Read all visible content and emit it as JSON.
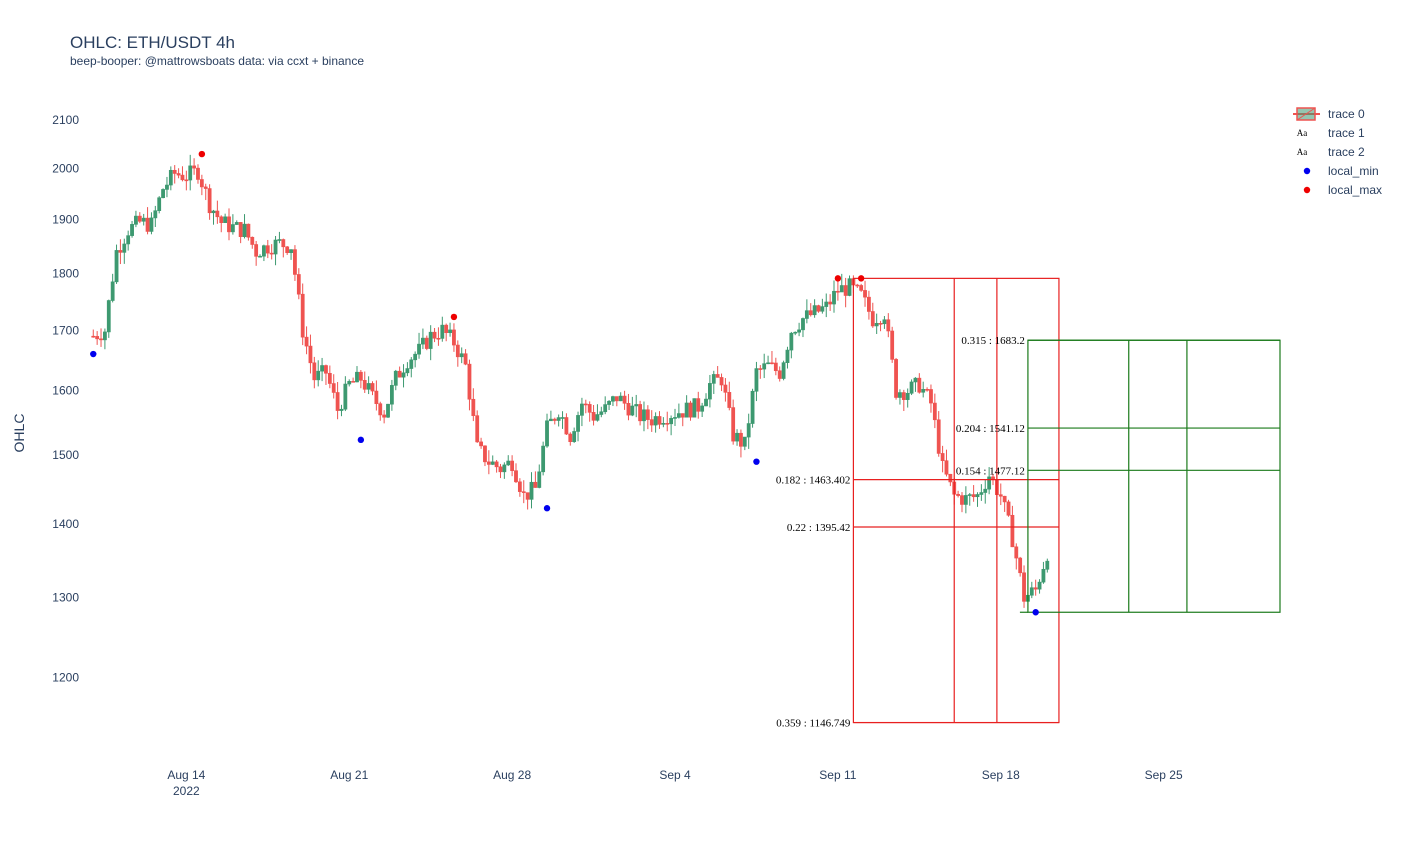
{
  "title": "OHLC: ETH/USDT 4h",
  "subtitle": "beep-booper: @mattrowsboats data: via ccxt + binance",
  "chart_data": {
    "type": "candlestick",
    "ylabel": "OHLC",
    "y_scale": "log",
    "ylim": [
      1110,
      2140
    ],
    "xlim": [
      "2022-08-09",
      "2022-09-30"
    ],
    "y_ticks": [
      1200,
      1300,
      1400,
      1500,
      1600,
      1700,
      1800,
      1900,
      2000,
      2100
    ],
    "x_ticks": [
      {
        "date": "2022-08-14",
        "label": "Aug 14",
        "sublabel": "2022"
      },
      {
        "date": "2022-08-21",
        "label": "Aug 21"
      },
      {
        "date": "2022-08-28",
        "label": "Aug 28"
      },
      {
        "date": "2022-09-04",
        "label": "Sep 4"
      },
      {
        "date": "2022-09-11",
        "label": "Sep 11"
      },
      {
        "date": "2022-09-18",
        "label": "Sep 18"
      },
      {
        "date": "2022-09-25",
        "label": "Sep 25"
      }
    ],
    "colors": {
      "increasing": "#3d9970",
      "decreasing": "#ef5350",
      "local_min": "#0000ee",
      "local_max": "#ee0000",
      "fib_red": "#e82020",
      "fib_green": "#1a7a1a"
    },
    "candles_close": [
      {
        "date": "2022-08-10 00:00",
        "close": 1690
      },
      {
        "date": "2022-08-10 12:00",
        "close": 1700
      },
      {
        "date": "2022-08-11 00:00",
        "close": 1840
      },
      {
        "date": "2022-08-11 12:00",
        "close": 1880
      },
      {
        "date": "2022-08-12 00:00",
        "close": 1895
      },
      {
        "date": "2022-08-12 12:00",
        "close": 1890
      },
      {
        "date": "2022-08-13 00:00",
        "close": 1960
      },
      {
        "date": "2022-08-13 12:00",
        "close": 1990
      },
      {
        "date": "2022-08-14 00:00",
        "close": 1985
      },
      {
        "date": "2022-08-14 12:00",
        "close": 1995
      },
      {
        "date": "2022-08-15 00:00",
        "close": 1930
      },
      {
        "date": "2022-08-15 12:00",
        "close": 1895
      },
      {
        "date": "2022-08-16 00:00",
        "close": 1885
      },
      {
        "date": "2022-08-16 12:00",
        "close": 1880
      },
      {
        "date": "2022-08-17 00:00",
        "close": 1840
      },
      {
        "date": "2022-08-17 12:00",
        "close": 1850
      },
      {
        "date": "2022-08-18 00:00",
        "close": 1855
      },
      {
        "date": "2022-08-18 12:00",
        "close": 1850
      },
      {
        "date": "2022-08-19 00:00",
        "close": 1700
      },
      {
        "date": "2022-08-19 12:00",
        "close": 1620
      },
      {
        "date": "2022-08-20 00:00",
        "close": 1630
      },
      {
        "date": "2022-08-20 12:00",
        "close": 1570
      },
      {
        "date": "2022-08-21 00:00",
        "close": 1610
      },
      {
        "date": "2022-08-21 12:00",
        "close": 1620
      },
      {
        "date": "2022-08-22 00:00",
        "close": 1590
      },
      {
        "date": "2022-08-22 12:00",
        "close": 1565
      },
      {
        "date": "2022-08-23 00:00",
        "close": 1620
      },
      {
        "date": "2022-08-23 12:00",
        "close": 1650
      },
      {
        "date": "2022-08-24 00:00",
        "close": 1665
      },
      {
        "date": "2022-08-24 12:00",
        "close": 1690
      },
      {
        "date": "2022-08-25 00:00",
        "close": 1700
      },
      {
        "date": "2022-08-25 12:00",
        "close": 1680
      },
      {
        "date": "2022-08-26 00:00",
        "close": 1640
      },
      {
        "date": "2022-08-26 12:00",
        "close": 1510
      },
      {
        "date": "2022-08-27 00:00",
        "close": 1490
      },
      {
        "date": "2022-08-27 12:00",
        "close": 1480
      },
      {
        "date": "2022-08-28 00:00",
        "close": 1490
      },
      {
        "date": "2022-08-28 12:00",
        "close": 1440
      },
      {
        "date": "2022-08-29 00:00",
        "close": 1450
      },
      {
        "date": "2022-08-29 12:00",
        "close": 1540
      },
      {
        "date": "2022-08-30 00:00",
        "close": 1570
      },
      {
        "date": "2022-08-30 12:00",
        "close": 1530
      },
      {
        "date": "2022-08-31 00:00",
        "close": 1580
      },
      {
        "date": "2022-08-31 12:00",
        "close": 1560
      },
      {
        "date": "2022-09-01 00:00",
        "close": 1570
      },
      {
        "date": "2022-09-01 12:00",
        "close": 1590
      },
      {
        "date": "2022-09-02 00:00",
        "close": 1575
      },
      {
        "date": "2022-09-02 12:00",
        "close": 1560
      },
      {
        "date": "2022-09-03 00:00",
        "close": 1555
      },
      {
        "date": "2022-09-03 12:00",
        "close": 1560
      },
      {
        "date": "2022-09-04 00:00",
        "close": 1565
      },
      {
        "date": "2022-09-04 12:00",
        "close": 1570
      },
      {
        "date": "2022-09-05 00:00",
        "close": 1575
      },
      {
        "date": "2022-09-05 12:00",
        "close": 1610
      },
      {
        "date": "2022-09-06 00:00",
        "close": 1620
      },
      {
        "date": "2022-09-06 12:00",
        "close": 1530
      },
      {
        "date": "2022-09-07 00:00",
        "close": 1515
      },
      {
        "date": "2022-09-07 12:00",
        "close": 1630
      },
      {
        "date": "2022-09-08 00:00",
        "close": 1640
      },
      {
        "date": "2022-09-08 12:00",
        "close": 1630
      },
      {
        "date": "2022-09-09 00:00",
        "close": 1700
      },
      {
        "date": "2022-09-09 12:00",
        "close": 1720
      },
      {
        "date": "2022-09-10 00:00",
        "close": 1730
      },
      {
        "date": "2022-09-10 12:00",
        "close": 1740
      },
      {
        "date": "2022-09-11 00:00",
        "close": 1770
      },
      {
        "date": "2022-09-11 12:00",
        "close": 1775
      },
      {
        "date": "2022-09-12 00:00",
        "close": 1760
      },
      {
        "date": "2022-09-12 12:00",
        "close": 1720
      },
      {
        "date": "2022-09-13 00:00",
        "close": 1730
      },
      {
        "date": "2022-09-13 12:00",
        "close": 1600
      },
      {
        "date": "2022-09-14 00:00",
        "close": 1600
      },
      {
        "date": "2022-09-14 12:00",
        "close": 1610
      },
      {
        "date": "2022-09-15 00:00",
        "close": 1580
      },
      {
        "date": "2022-09-15 12:00",
        "close": 1480
      },
      {
        "date": "2022-09-16 00:00",
        "close": 1440
      },
      {
        "date": "2022-09-16 12:00",
        "close": 1435
      },
      {
        "date": "2022-09-17 00:00",
        "close": 1440
      },
      {
        "date": "2022-09-17 12:00",
        "close": 1470
      },
      {
        "date": "2022-09-18 00:00",
        "close": 1440
      },
      {
        "date": "2022-09-18 12:00",
        "close": 1380
      },
      {
        "date": "2022-09-19 00:00",
        "close": 1300
      },
      {
        "date": "2022-09-19 12:00",
        "close": 1310
      },
      {
        "date": "2022-09-20 00:00",
        "close": 1360
      }
    ],
    "local_min": [
      {
        "date": "2022-08-10 00:00",
        "price": 1660
      },
      {
        "date": "2022-08-21 12:00",
        "price": 1523
      },
      {
        "date": "2022-08-29 12:00",
        "price": 1422
      },
      {
        "date": "2022-09-07 12:00",
        "price": 1490
      },
      {
        "date": "2022-09-19 12:00",
        "price": 1281
      }
    ],
    "local_max": [
      {
        "date": "2022-08-14 16:00",
        "price": 2029
      },
      {
        "date": "2022-08-25 12:00",
        "price": 1723
      },
      {
        "date": "2022-09-11 00:00",
        "price": 1791
      },
      {
        "date": "2022-09-12 00:00",
        "price": 1791
      }
    ],
    "fib_red": {
      "x_start": "2022-09-11 16:00",
      "x_end": "2022-09-20 12:00",
      "x_dividers": [
        "2022-09-16 00:00",
        "2022-09-17 20:00"
      ],
      "top": 1791,
      "levels": [
        {
          "label": "0.182 : 1463.402",
          "price": 1463.402
        },
        {
          "label": "0.22 : 1395.42",
          "price": 1395.42
        },
        {
          "label": "0.359 : 1146.749",
          "price": 1146.749
        }
      ]
    },
    "fib_green": {
      "x_start": "2022-09-19 04:00",
      "x_end": "2022-09-30 00:00",
      "x_dividers": [
        "2022-09-23 12:00",
        "2022-09-26 00:00"
      ],
      "bottom": 1281,
      "levels": [
        {
          "label": "0.315 : 1683.2",
          "price": 1683.2
        },
        {
          "label": "0.204 : 1541.12",
          "price": 1541.12
        },
        {
          "label": "0.154 : 1477.12",
          "price": 1477.12
        }
      ]
    },
    "legend": [
      {
        "name": "trace 0",
        "kind": "candle"
      },
      {
        "name": "trace 1",
        "kind": "text",
        "glyph": "Aa"
      },
      {
        "name": "trace 2",
        "kind": "text",
        "glyph": "Aa"
      },
      {
        "name": "local_min",
        "kind": "marker",
        "color": "#0000ee"
      },
      {
        "name": "local_max",
        "kind": "marker",
        "color": "#ee0000"
      }
    ]
  }
}
